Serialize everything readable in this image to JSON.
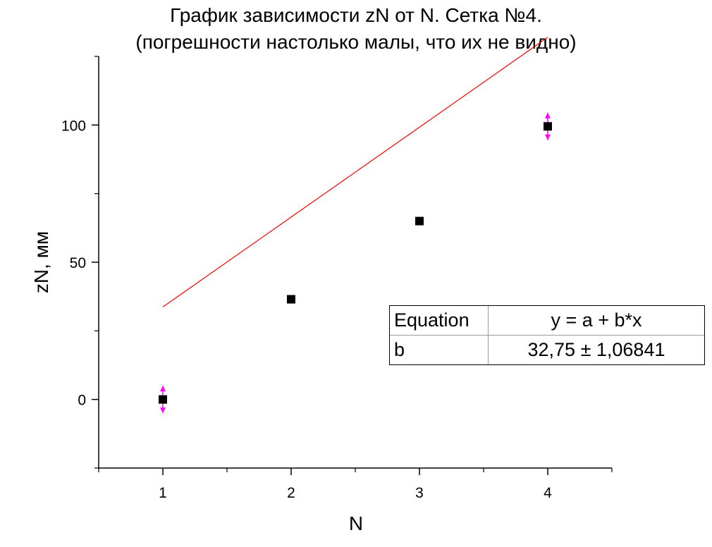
{
  "chart_data": {
    "type": "scatter",
    "title": "График зависимости zN от N. Сетка №4.",
    "subtitle": "(погрешности настолько малы, что их не видно)",
    "xlabel": "N",
    "ylabel": "zN, мм",
    "xlim": [
      0.5,
      4.5
    ],
    "ylim": [
      -25,
      125
    ],
    "x_ticks": [
      "1",
      "2",
      "3",
      "4"
    ],
    "y_ticks": [
      "0",
      "50",
      "100"
    ],
    "grid": false,
    "series": [
      {
        "x": [
          1,
          2,
          3,
          4
        ],
        "y": [
          0,
          36.5,
          65,
          99.5
        ],
        "y_error": [
          5,
          0,
          0,
          5
        ],
        "marker": "square",
        "color": "#000000",
        "error_color": "#ff00ff"
      }
    ],
    "fit": {
      "type": "linear",
      "x_range": [
        1,
        4
      ],
      "a": 0.95,
      "b": 32.75,
      "color": "#ff0000"
    },
    "results_table": [
      {
        "key": "Equation",
        "value": "y = a + b*x"
      },
      {
        "key": "b",
        "value": "32,75 ± 1,06841"
      }
    ]
  }
}
